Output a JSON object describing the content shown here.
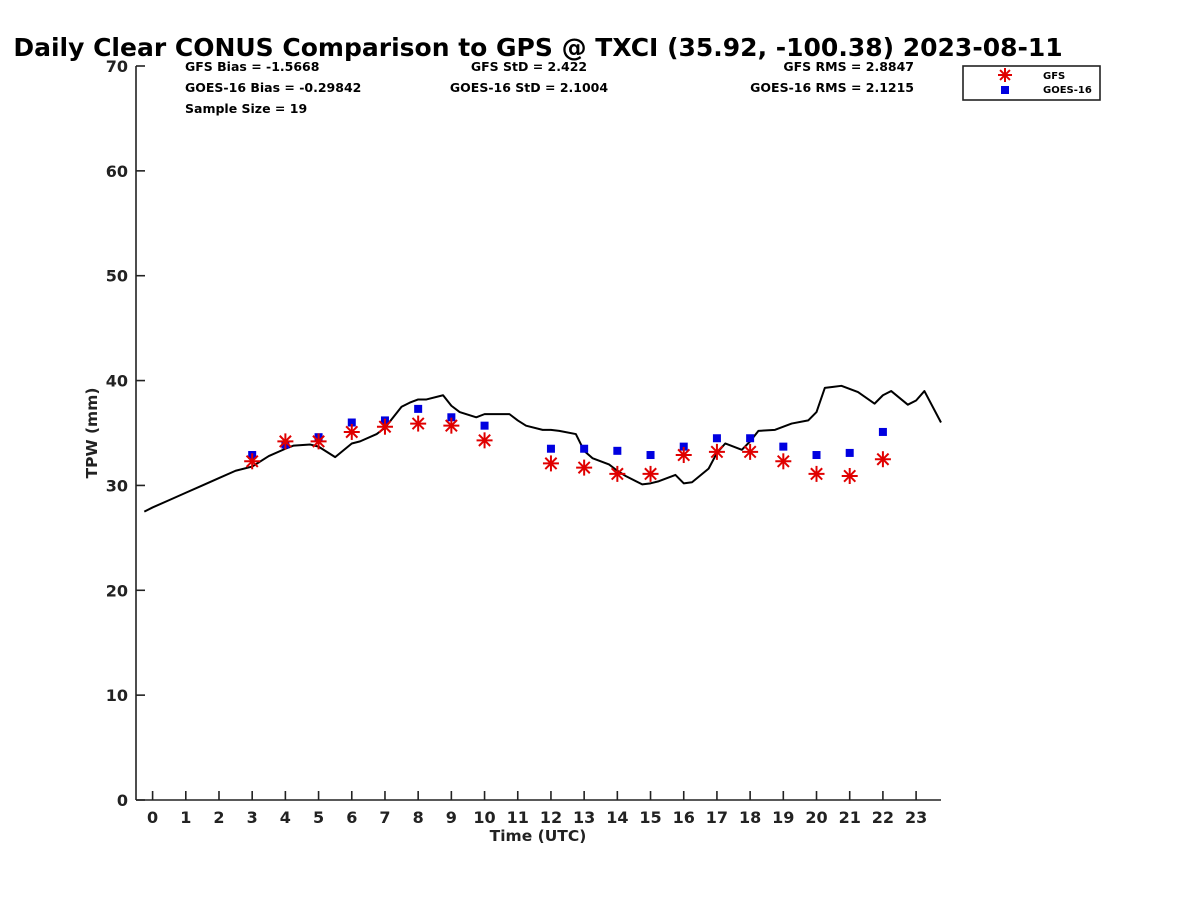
{
  "chart_data": {
    "type": "line",
    "title": "Daily Clear CONUS Comparison to GPS @ TXCI (35.92, -100.38) 2023-08-11",
    "xlabel": "Time (UTC)",
    "ylabel": "TPW (mm)",
    "xlim": [
      -0.5,
      23.75
    ],
    "ylim": [
      0,
      70
    ],
    "x_ticks": [
      "0",
      "1",
      "2",
      "3",
      "4",
      "5",
      "6",
      "7",
      "8",
      "9",
      "10",
      "11",
      "12",
      "13",
      "14",
      "15",
      "16",
      "17",
      "18",
      "19",
      "20",
      "21",
      "22",
      "23"
    ],
    "y_ticks": [
      "0",
      "10",
      "20",
      "30",
      "40",
      "50",
      "60",
      "70"
    ],
    "stats": {
      "gfs_bias": "GFS Bias = -1.5668",
      "goes_bias": "GOES-16 Bias = -0.29842",
      "sample_size": "Sample Size = 19",
      "gfs_std": "GFS StD = 2.422",
      "goes_std": "GOES-16 StD = 2.1004",
      "gfs_rms": "GFS RMS = 2.8847",
      "goes_rms": "GOES-16 RMS = 2.1215"
    },
    "legend": {
      "placement": "top-right",
      "entries": [
        "GFS",
        "GOES-16"
      ]
    },
    "series": [
      {
        "type": "line",
        "color": "#000000",
        "x": [
          -0.25,
          0,
          0.5,
          1,
          1.5,
          2,
          2.5,
          3,
          3.5,
          4,
          4.25,
          4.75,
          5,
          5.5,
          6,
          6.25,
          6.75,
          7,
          7.5,
          7.75,
          8,
          8.25,
          8.75,
          9,
          9.25,
          9.75,
          10,
          10.25,
          10.75,
          11,
          11.25,
          11.75,
          12,
          12.25,
          12.75,
          13,
          13.25,
          13.75,
          14,
          14.25,
          14.75,
          15,
          15.25,
          15.75,
          16,
          16.25,
          16.75,
          17,
          17.25,
          17.75,
          18,
          18.25,
          18.75,
          19,
          19.25,
          19.75,
          20,
          20.25,
          20.5,
          20.75,
          21,
          21.25,
          21.75,
          22,
          22.25,
          22.75,
          23,
          23.25,
          23.75
        ],
        "y": [
          27.5,
          27.9,
          28.6,
          29.3,
          30.0,
          30.7,
          31.4,
          31.8,
          32.8,
          33.5,
          33.8,
          33.9,
          33.7,
          32.7,
          34.0,
          34.2,
          34.9,
          35.5,
          37.5,
          37.9,
          38.2,
          38.2,
          38.6,
          37.6,
          37.0,
          36.5,
          36.8,
          36.8,
          36.8,
          36.2,
          35.7,
          35.3,
          35.3,
          35.2,
          34.9,
          33.3,
          32.6,
          32.0,
          31.4,
          30.9,
          30.1,
          30.2,
          30.4,
          31.0,
          30.2,
          30.3,
          31.6,
          33.1,
          34.0,
          33.4,
          34.2,
          35.2,
          35.3,
          35.6,
          35.9,
          36.2,
          37.0,
          39.3,
          39.4,
          39.5,
          39.2,
          38.9,
          37.8,
          38.6,
          39.0,
          37.7,
          38.1,
          39.0,
          36.0
        ]
      },
      {
        "type": "scatter",
        "marker": "asterisk",
        "color": "#e00000",
        "x": [
          3,
          4,
          5,
          6,
          7,
          8,
          9,
          10,
          12,
          13,
          14,
          15,
          16,
          17,
          18,
          19,
          20,
          21,
          22
        ],
        "y": [
          32.3,
          34.2,
          34.2,
          35.1,
          35.6,
          35.9,
          35.7,
          34.3,
          32.1,
          31.7,
          31.1,
          31.1,
          32.9,
          33.2,
          33.2,
          32.3,
          31.1,
          30.9,
          32.5
        ]
      },
      {
        "type": "scatter",
        "marker": "square",
        "color": "#0000e0",
        "x": [
          3,
          4,
          5,
          6,
          7,
          8,
          9,
          10,
          12,
          13,
          14,
          15,
          16,
          17,
          18,
          19,
          20,
          21,
          22
        ],
        "y": [
          32.9,
          33.9,
          34.6,
          36.0,
          36.2,
          37.3,
          36.5,
          35.7,
          33.5,
          33.5,
          33.3,
          32.9,
          33.7,
          34.5,
          34.5,
          33.7,
          32.9,
          33.1,
          35.1
        ]
      }
    ]
  }
}
